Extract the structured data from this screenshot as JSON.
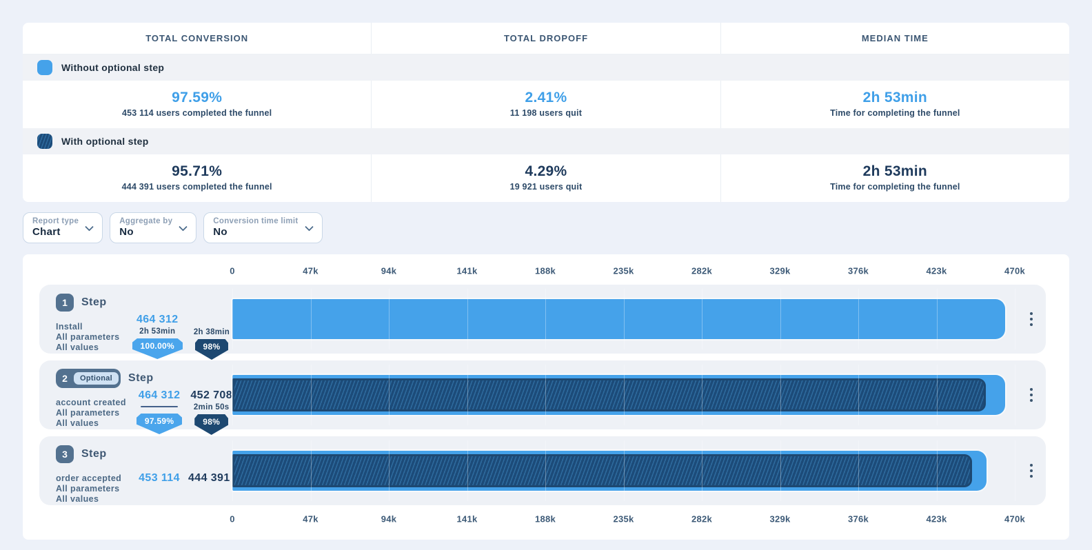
{
  "theme": {
    "accent_blue": "#3f9fe8",
    "navy": "#1e3a5c",
    "bar_blue": "#45a2ea",
    "hatch_navy": "#1d4871",
    "page_background": "#edf1f9"
  },
  "summary": {
    "headers": [
      "TOTAL CONVERSION",
      "TOTAL DROPOFF",
      "MEDIAN TIME"
    ],
    "legend": [
      {
        "label": "Without optional step",
        "swatch": "solid-blue"
      },
      {
        "label": "With optional step",
        "swatch": "hatched-navy"
      }
    ],
    "rows": [
      {
        "conversion_value": "97.59%",
        "conversion_caption": "453 114 users completed the funnel",
        "dropoff_value": "2.41%",
        "dropoff_caption": "11 198 users quit",
        "time_value": "2h 53min",
        "time_caption": "Time for completing the funnel"
      },
      {
        "conversion_value": "95.71%",
        "conversion_caption": "444 391 users completed the funnel",
        "dropoff_value": "4.29%",
        "dropoff_caption": "19 921 users quit",
        "time_value": "2h 53min",
        "time_caption": "Time for completing the funnel"
      }
    ]
  },
  "filters": [
    {
      "label": "Report type",
      "value": "Chart"
    },
    {
      "label": "Aggregate by",
      "value": "No"
    },
    {
      "label": "Conversion time limit",
      "value": "No"
    }
  ],
  "chart_data": {
    "type": "bar",
    "orientation": "horizontal",
    "x_axis": {
      "ticks": [
        "0",
        "47k",
        "94k",
        "141k",
        "188k",
        "235k",
        "282k",
        "329k",
        "376k",
        "423k",
        "470k"
      ],
      "max": 470000,
      "shown": "top and bottom",
      "grid": true
    },
    "series": [
      {
        "name": "Without optional step",
        "style": "solid",
        "values": [
          464312,
          464312,
          453114
        ]
      },
      {
        "name": "With optional step",
        "style": "hatched",
        "values": [
          null,
          452708,
          444391
        ]
      }
    ],
    "steps": [
      {
        "number": "1",
        "title": "Step",
        "event": "Install",
        "parameters_label": "All parameters",
        "values_label": "All values",
        "primary_users": "464 312",
        "primary_users_value": 464312,
        "primary_time": "2h 53min",
        "primary_badge": "100.00%",
        "secondary_time": "2h 38min",
        "secondary_badge": "98%"
      },
      {
        "number": "2",
        "optional_label": "Optional",
        "title": "Step",
        "event": "account created",
        "parameters_label": "All parameters",
        "values_label": "All values",
        "primary_users": "464 312",
        "primary_users_value": 464312,
        "primary_badge": "97.59%",
        "secondary_users": "452 708",
        "secondary_users_value": 452708,
        "secondary_time": "2min 50s",
        "secondary_badge": "98%"
      },
      {
        "number": "3",
        "title": "Step",
        "event": "order accepted",
        "parameters_label": "All parameters",
        "values_label": "All values",
        "primary_users": "453 114",
        "primary_users_value": 453114,
        "secondary_users": "444 391",
        "secondary_users_value": 444391
      }
    ]
  }
}
